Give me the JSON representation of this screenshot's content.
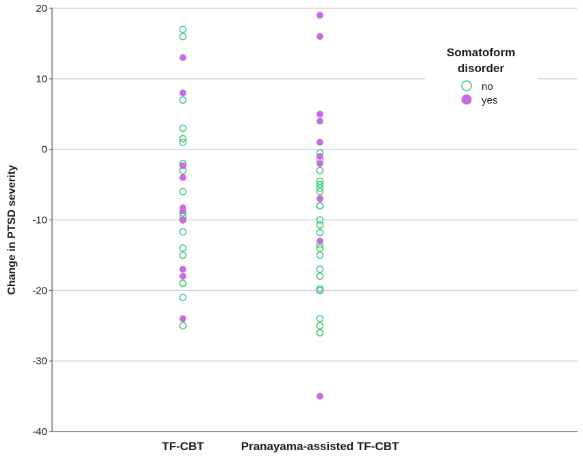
{
  "chart_data": {
    "type": "scatter",
    "title": "",
    "xlabel": "",
    "ylabel": "Change in PTSD severity",
    "ylim": [
      -40,
      20
    ],
    "yticks": [
      20,
      10,
      0,
      -10,
      -20,
      -30,
      -40
    ],
    "categories": [
      "TF-CBT",
      "Pranayama-assisted TF-CBT"
    ],
    "grid": true,
    "legend": {
      "title_lines": [
        "Somatoform",
        "disorder"
      ],
      "placement": "top-right",
      "entries": [
        {
          "label": "no",
          "marker": "hollow"
        },
        {
          "label": "yes",
          "marker": "filled"
        }
      ]
    },
    "colors": {
      "no": "#3ec97a",
      "yes": "#c86ce3",
      "grid": "#d3d3d3",
      "axis": "#555555"
    },
    "series": [
      {
        "name": "no",
        "points": [
          {
            "category": "TF-CBT",
            "values": [
              17,
              16,
              7,
              3,
              1.5,
              1,
              -2,
              -3,
              -6,
              -9,
              -9.5,
              -10,
              -11.7,
              -14,
              -15,
              -19,
              -19,
              -21,
              -25
            ]
          },
          {
            "category": "Pranayama-assisted TF-CBT",
            "values": [
              -0.5,
              -1.5,
              -3,
              -4.5,
              -5,
              -5.5,
              -6,
              -8,
              -8,
              -10,
              -10.7,
              -11.8,
              -13.5,
              -14,
              -15,
              -17,
              -18,
              -19.8,
              -20,
              -24,
              -25,
              -26,
              -26
            ]
          }
        ]
      },
      {
        "name": "yes",
        "points": [
          {
            "category": "TF-CBT",
            "values": [
              13,
              8,
              -2.3,
              -4,
              -8.3,
              -8.7,
              -10,
              -17,
              -18,
              -24
            ]
          },
          {
            "category": "Pranayama-assisted TF-CBT",
            "values": [
              19,
              16,
              5,
              4,
              1,
              -1,
              -2,
              -7,
              -13,
              -35
            ]
          }
        ]
      }
    ]
  }
}
